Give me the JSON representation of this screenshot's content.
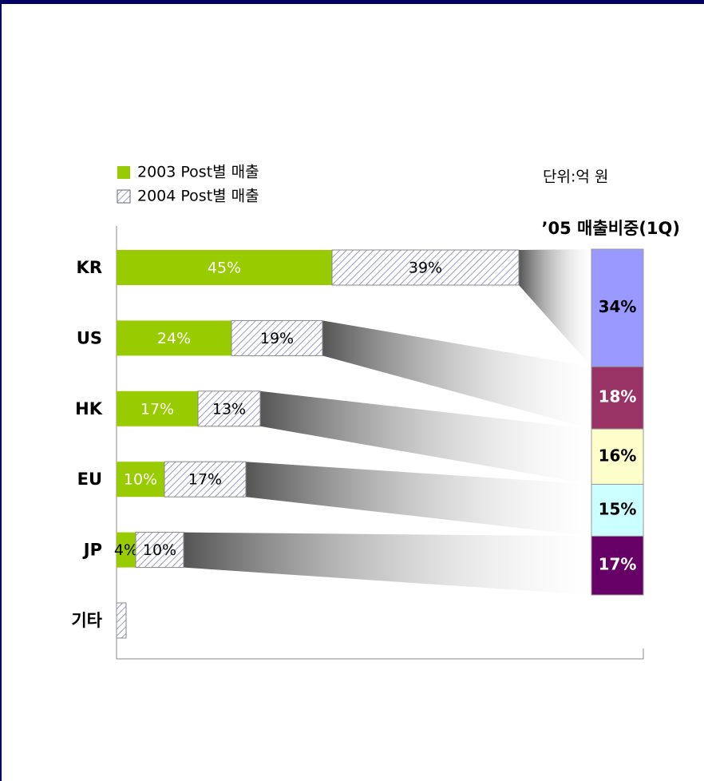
{
  "chart_data": [
    {
      "type": "bar",
      "orientation": "horizontal",
      "stacked": true,
      "unit": "단위:억 원",
      "categories": [
        "KR",
        "US",
        "HK",
        "EU",
        "JP",
        "기타"
      ],
      "series": [
        {
          "name": "2003 Post별 매출",
          "color": "#99cc00",
          "values": [
            45,
            24,
            17,
            10,
            4,
            0
          ],
          "value_labels": [
            "45%",
            "24%",
            "17%",
            "10%",
            "4%",
            null
          ]
        },
        {
          "name": "2004 Post별 매출",
          "color": "#9999cc",
          "pattern": "hatch",
          "values": [
            39,
            19,
            13,
            17,
            10,
            2
          ],
          "value_labels": [
            "39%",
            "19%",
            "13%",
            "17%",
            "10%",
            null
          ]
        }
      ]
    },
    {
      "type": "stacked-column",
      "title": "’05 매출비중(1Q)",
      "values": [
        34,
        18,
        16,
        15,
        17
      ],
      "value_labels": [
        "34%",
        "18%",
        "16%",
        "15%",
        "17%"
      ],
      "colors": [
        "#9999ff",
        "#993366",
        "#ffffcc",
        "#ccffff",
        "#660066"
      ]
    }
  ]
}
